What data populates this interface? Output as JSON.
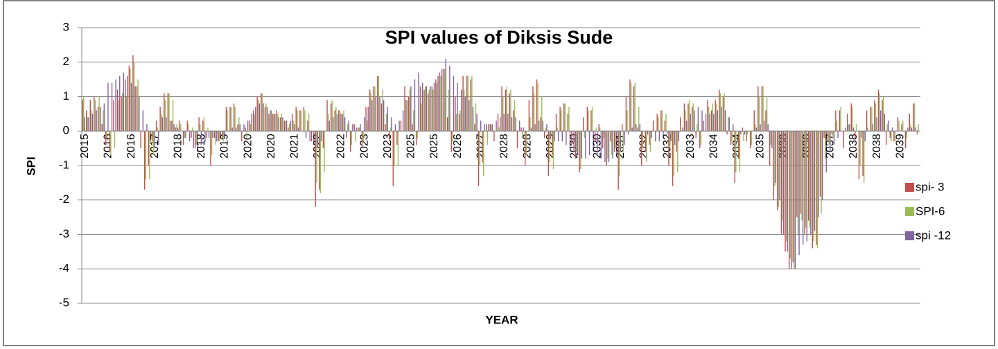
{
  "chart_data": {
    "type": "bar",
    "title": "SPI values of Diksis Sude",
    "x_label": "YEAR",
    "y_label": "SPI",
    "ylim": [
      -5,
      3
    ],
    "yticks": [
      -5,
      -4,
      -3,
      -2,
      -1,
      0,
      1,
      2,
      3
    ],
    "grid": true,
    "legend": "right",
    "categories": [
      "2015",
      null,
      null,
      null,
      null,
      null,
      "2016",
      null,
      null,
      null,
      null,
      null,
      "2016",
      null,
      null,
      null,
      null,
      null,
      "2017",
      null,
      null,
      null,
      null,
      null,
      "2018",
      null,
      null,
      null,
      null,
      null,
      "2018",
      null,
      null,
      null,
      null,
      null,
      "2019",
      null,
      null,
      null,
      null,
      null,
      "2020",
      null,
      null,
      null,
      null,
      null,
      "2020",
      null,
      null,
      null,
      null,
      null,
      "2021",
      null,
      null,
      null,
      null,
      null,
      "2022",
      null,
      null,
      null,
      null,
      null,
      "2022",
      null,
      null,
      null,
      null,
      null,
      "2023",
      null,
      null,
      null,
      null,
      null,
      "2023",
      null,
      null,
      null,
      null,
      null,
      "2025",
      null,
      null,
      null,
      null,
      null,
      "2025",
      null,
      null,
      null,
      null,
      null,
      "2026",
      null,
      null,
      null,
      null,
      null,
      "2027",
      null,
      null,
      null,
      null,
      null,
      "2028",
      null,
      null,
      null,
      null,
      null,
      "2028",
      null,
      null,
      null,
      null,
      null,
      "2029",
      null,
      null,
      null,
      null,
      null,
      "2030",
      null,
      null,
      null,
      null,
      null,
      "2030",
      null,
      null,
      null,
      null,
      null,
      "2031",
      null,
      null,
      null,
      null,
      null,
      "2032",
      null,
      null,
      null,
      null,
      null,
      "2032",
      null,
      null,
      null,
      null,
      null,
      "2033",
      null,
      null,
      null,
      null,
      null,
      "2034",
      null,
      null,
      null,
      null,
      null,
      "2034",
      null,
      null,
      null,
      null,
      null,
      "2035",
      null,
      null,
      null,
      null,
      null,
      "2036",
      null,
      null,
      null,
      null,
      null,
      "2036",
      null,
      null,
      null,
      null,
      null,
      "2037",
      null,
      null,
      null,
      null,
      null,
      "2038",
      null,
      null,
      null,
      null,
      null,
      "2038",
      null,
      null,
      null,
      null,
      null,
      "2039",
      null,
      null,
      null,
      null,
      null
    ],
    "series": [
      {
        "name": "spi- 3",
        "color": "#c0504d",
        "values": [
          0.9,
          0.6,
          0.9,
          1.0,
          0.7,
          0.2,
          -0.4,
          -0.6,
          0.9,
          1.2,
          1.0,
          1.5,
          1.9,
          2.2,
          1.3,
          -0.5,
          -1.7,
          -1.0,
          -0.3,
          0.3,
          0.7,
          1.1,
          1.1,
          0.3,
          0.1,
          0.3,
          -0.4,
          0.3,
          -0.2,
          -0.5,
          0.4,
          0.3,
          -0.2,
          -1.0,
          -0.2,
          -0.3,
          -0.2,
          0.7,
          0.7,
          0.8,
          0.2,
          -0.3,
          0.1,
          0.3,
          0.6,
          1.0,
          1.1,
          0.7,
          0.5,
          0.5,
          0.6,
          0.4,
          0.3,
          0.1,
          0.5,
          0.7,
          0.6,
          0.7,
          0.3,
          -0.3,
          -2.2,
          -1.7,
          -0.5,
          0.9,
          0.8,
          0.6,
          0.6,
          0.5,
          -0.2,
          -0.6,
          0.2,
          0.1,
          -0.5,
          0.7,
          1.2,
          1.3,
          1.6,
          0.8,
          0.2,
          -0.3,
          -1.6,
          -0.4,
          0.3,
          1.3,
          1.0,
          0.2,
          -0.4,
          1.3,
          1.2,
          1.1,
          1.3,
          1.5,
          1.7,
          1.8,
          0.4,
          -0.6,
          1.0,
          0.5,
          1.6,
          1.6,
          1.5,
          0.2,
          -1.6,
          -0.9,
          0.2,
          0.2,
          -0.3,
          0.5,
          1.3,
          1.2,
          1.1,
          0.6,
          -0.5,
          0.1,
          -1.0,
          0.9,
          1.3,
          1.5,
          0.4,
          -0.2,
          -1.3,
          -0.7,
          0.5,
          0.7,
          0.8,
          0.5,
          -0.4,
          -0.8,
          -1.2,
          0.4,
          0.7,
          0.6,
          -0.3,
          0.2,
          -0.5,
          -1.0,
          -0.3,
          -0.6,
          -1.7,
          0.2,
          1.0,
          1.5,
          1.3,
          0.1,
          -1.0,
          -0.6,
          -0.4,
          0.3,
          0.5,
          0.6,
          0.3,
          -1.0,
          -1.6,
          -0.6,
          0.4,
          0.8,
          0.8,
          0.7,
          -0.2,
          -0.5,
          0.3,
          0.9,
          0.6,
          0.9,
          1.2,
          1.0,
          -0.1,
          -0.4,
          -1.5,
          -0.8,
          0.1,
          -0.3,
          -0.5,
          0.6,
          1.3,
          1.3,
          0.6,
          -1.0,
          -2.0,
          -2.3,
          -3.0,
          -3.5,
          -4.0,
          -3.8,
          -2.5,
          -2.4,
          -3.0,
          -2.6,
          -3.4,
          -3.3,
          -1.9,
          -0.2,
          -0.3,
          -0.1,
          0.6,
          0.6,
          -0.5,
          0.5,
          0.8,
          -0.2,
          -1.4,
          -1.3,
          0.6,
          0.7,
          0.9,
          1.2,
          0.9,
          -0.4,
          -0.2,
          -0.3,
          0.4,
          0.2,
          -0.5,
          0.5,
          0.8,
          -0.1
        ]
      },
      {
        "name": "SPI-6",
        "color": "#9bbb59",
        "values": [
          1.0,
          0.4,
          0.6,
          0.9,
          1.0,
          0.6,
          -0.2,
          -0.7,
          -0.5,
          0.9,
          1.1,
          1.0,
          1.8,
          2.0,
          1.5,
          0.0,
          -1.4,
          -1.4,
          -0.7,
          0.1,
          0.5,
          0.9,
          1.1,
          0.9,
          0.2,
          0.2,
          -0.2,
          0.2,
          0.1,
          -0.4,
          0.2,
          0.4,
          0.1,
          -0.7,
          -0.4,
          -0.3,
          -0.3,
          0.6,
          0.7,
          0.7,
          0.4,
          0.0,
          -0.2,
          0.2,
          0.5,
          0.9,
          1.1,
          0.8,
          0.6,
          0.5,
          0.5,
          0.5,
          0.3,
          0.2,
          0.3,
          0.6,
          0.6,
          0.6,
          0.5,
          0.0,
          -1.5,
          -1.8,
          -1.2,
          0.5,
          0.9,
          0.7,
          0.6,
          0.6,
          0.2,
          -0.4,
          -0.3,
          0.1,
          -0.3,
          0.3,
          1.1,
          1.3,
          1.6,
          1.2,
          0.5,
          0.1,
          -1.0,
          -1.0,
          0.0,
          0.9,
          1.2,
          0.6,
          -0.2,
          0.8,
          1.3,
          1.2,
          1.2,
          1.4,
          1.6,
          1.8,
          1.2,
          -0.3,
          0.5,
          0.6,
          1.2,
          1.6,
          1.6,
          0.8,
          -1.0,
          -1.3,
          -0.4,
          0.2,
          0.0,
          0.1,
          1.0,
          1.3,
          1.2,
          0.9,
          0.0,
          -0.2,
          -0.7,
          0.4,
          1.1,
          1.4,
          1.0,
          0.1,
          -0.9,
          -1.1,
          0.1,
          0.6,
          0.8,
          0.7,
          0.0,
          -0.6,
          -1.1,
          -0.2,
          0.6,
          0.7,
          0.1,
          0.1,
          -0.2,
          -0.8,
          -0.7,
          -0.5,
          -1.3,
          -0.6,
          0.6,
          1.4,
          1.4,
          0.7,
          -0.5,
          -0.9,
          -0.6,
          0.0,
          0.4,
          0.6,
          0.5,
          -0.5,
          -1.3,
          -1.2,
          0.0,
          0.6,
          0.9,
          0.8,
          0.2,
          -0.4,
          0.0,
          0.7,
          0.8,
          0.8,
          1.1,
          1.1,
          0.4,
          -0.3,
          -1.2,
          -1.2,
          -0.3,
          -0.1,
          -0.4,
          0.2,
          1.0,
          1.3,
          1.0,
          -0.4,
          -1.6,
          -2.2,
          -2.6,
          -3.2,
          -3.7,
          -4.0,
          -3.0,
          -2.6,
          -2.8,
          -2.8,
          -3.2,
          -3.4,
          -2.4,
          -0.8,
          -0.4,
          -0.2,
          0.3,
          0.7,
          0.0,
          0.2,
          0.7,
          0.2,
          -1.0,
          -1.5,
          0.1,
          0.7,
          0.8,
          1.1,
          1.0,
          0.2,
          -0.3,
          -0.3,
          0.3,
          0.3,
          -0.2,
          0.2,
          0.8,
          0.2
        ]
      },
      {
        "name": "spi -12",
        "color": "#8064a2",
        "values": [
          0.4,
          0.4,
          0.5,
          0.6,
          0.7,
          0.8,
          1.4,
          1.4,
          1.5,
          1.6,
          1.7,
          1.6,
          1.4,
          1.3,
          1.0,
          0.6,
          0.2,
          -0.3,
          -0.5,
          -0.4,
          0.4,
          0.4,
          0.3,
          0.2,
          0.1,
          0.0,
          -0.2,
          -0.3,
          -0.5,
          -0.6,
          -0.4,
          -0.3,
          -0.2,
          -0.2,
          -0.3,
          -0.2,
          -0.1,
          0.0,
          0.1,
          0.1,
          0.2,
          0.2,
          0.3,
          0.5,
          0.7,
          0.8,
          0.8,
          0.7,
          0.6,
          0.5,
          0.4,
          0.4,
          0.3,
          0.3,
          0.2,
          0.1,
          0.0,
          -0.2,
          -0.3,
          -0.4,
          -0.5,
          -0.3,
          0.0,
          0.3,
          0.4,
          0.5,
          0.5,
          0.4,
          0.3,
          0.2,
          0.1,
          0.2,
          0.4,
          0.7,
          0.9,
          1.0,
          1.0,
          0.9,
          0.7,
          0.4,
          0.2,
          0.3,
          0.6,
          0.9,
          1.3,
          1.5,
          1.7,
          1.4,
          1.3,
          1.3,
          1.4,
          1.6,
          1.8,
          2.1,
          1.9,
          1.6,
          1.4,
          1.2,
          1.0,
          0.9,
          0.7,
          0.5,
          0.3,
          0.2,
          0.2,
          0.2,
          0.3,
          0.4,
          0.5,
          0.5,
          0.4,
          0.4,
          0.3,
          0.1,
          0.0,
          0.1,
          0.2,
          0.3,
          0.3,
          0.2,
          -0.2,
          -0.3,
          -0.3,
          -0.3,
          -0.4,
          -0.5,
          -0.6,
          -0.7,
          -0.8,
          -0.8,
          -0.7,
          -0.6,
          -0.7,
          -0.8,
          -0.9,
          -0.9,
          -0.8,
          -0.7,
          -0.6,
          -0.4,
          -0.1,
          0.1,
          0.2,
          0.2,
          0.0,
          -0.1,
          -0.2,
          -0.3,
          -0.3,
          -0.2,
          -0.1,
          -0.3,
          -0.4,
          -0.3,
          0.1,
          0.3,
          0.5,
          0.6,
          0.7,
          0.6,
          0.5,
          0.5,
          0.5,
          0.6,
          0.7,
          0.6,
          0.4,
          0.2,
          0.0,
          -0.1,
          -0.1,
          0.0,
          0.0,
          0.1,
          0.2,
          0.3,
          0.2,
          -0.5,
          -1.5,
          -2.0,
          -3.0,
          -3.5,
          -4.0,
          -4.0,
          -3.6,
          -3.3,
          -3.2,
          -3.0,
          -2.9,
          -2.5,
          -2.0,
          -1.2,
          -0.6,
          -0.4,
          -0.2,
          0.0,
          0.1,
          0.2,
          0.1,
          0.0,
          -0.2,
          -0.3,
          0.0,
          0.2,
          0.4,
          0.6,
          0.5,
          0.3,
          0.1,
          0.0,
          0.0,
          0.0,
          0.1,
          0.1,
          0.1,
          0.0
        ]
      }
    ]
  }
}
